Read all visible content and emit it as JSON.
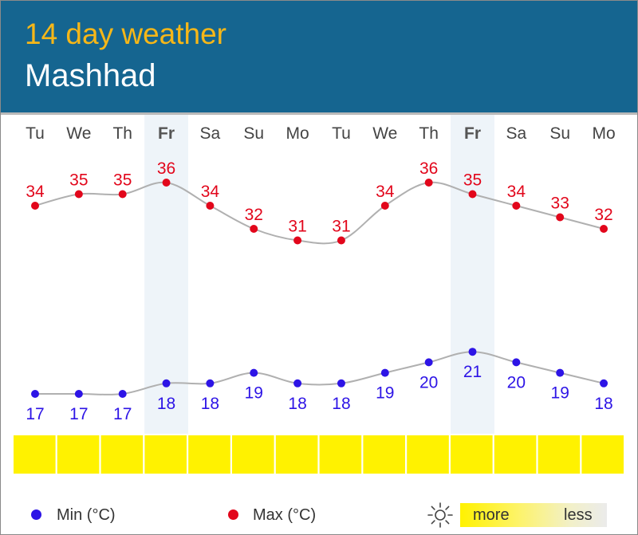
{
  "header": {
    "title": "14 day weather",
    "city": "Mashhad"
  },
  "chart_data": {
    "type": "line",
    "categories": [
      "Tu",
      "We",
      "Th",
      "Fr",
      "Sa",
      "Su",
      "Mo",
      "Tu",
      "We",
      "Th",
      "Fr",
      "Sa",
      "Su",
      "Mo"
    ],
    "highlighted_days": [
      3,
      10
    ],
    "series": [
      {
        "name": "Max (°C)",
        "color": "#e2061b",
        "values": [
          34,
          35,
          35,
          36,
          34,
          32,
          31,
          31,
          34,
          36,
          35,
          34,
          33,
          32
        ]
      },
      {
        "name": "Min (°C)",
        "color": "#2d14e6",
        "values": [
          17,
          17,
          17,
          18,
          18,
          19,
          18,
          18,
          19,
          20,
          21,
          20,
          19,
          18
        ]
      }
    ],
    "sunshine": [
      1,
      1,
      1,
      1,
      1,
      1,
      1,
      1,
      1,
      1,
      1,
      1,
      1,
      1
    ],
    "colors": {
      "header_bg": "#156590",
      "title": "#f6b718",
      "sunshine_full": "#fff200",
      "highlight": "#eef4f9",
      "line": "#b0b0b0"
    }
  },
  "legend": {
    "min_label": "Min (°C)",
    "max_label": "Max (°C)",
    "sun_more": "more",
    "sun_less": "less"
  }
}
